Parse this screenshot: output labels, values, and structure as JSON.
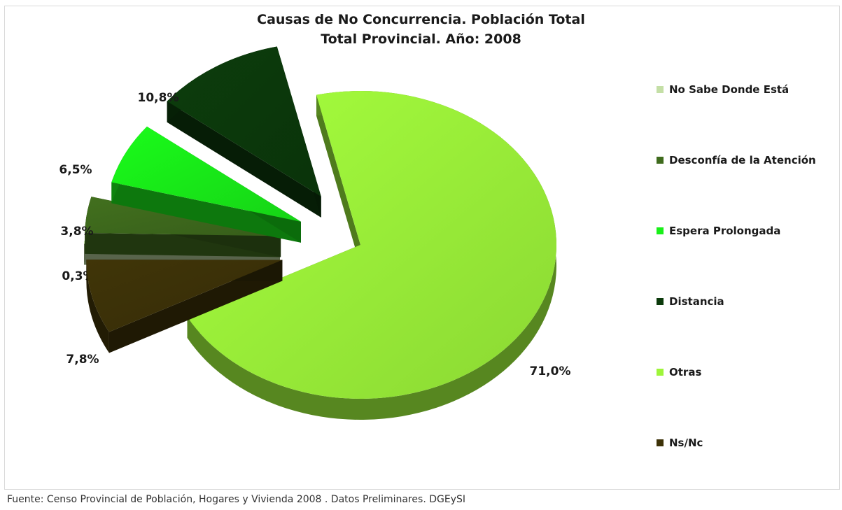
{
  "chart_data": {
    "type": "pie",
    "title": "Causas de No Concurrencia. Población Total",
    "subtitle": "Total Provincial. Año: 2008",
    "categories": [
      "No Sabe Donde Está",
      "Desconfía de la Atención",
      "Espera Prolongada",
      "Distancia",
      "Otras",
      "Ns/Nc"
    ],
    "values": [
      0.3,
      3.8,
      6.5,
      10.8,
      71.0,
      7.8
    ],
    "data_labels": [
      "0,3%",
      "3,8%",
      "6,5%",
      "10,8%",
      "71,0%",
      "7,8%"
    ],
    "colors": [
      "#c4dfa6",
      "#3f6b1d",
      "#19f019",
      "#0b3a0b",
      "#9ef53a",
      "#3d3208"
    ],
    "legend_position": "right",
    "exploded": true,
    "three_d": true
  },
  "footer": {
    "source": "Fuente: Censo Provincial de Población, Hogares y Vivienda 2008 . Datos Preliminares. DGEySI"
  }
}
